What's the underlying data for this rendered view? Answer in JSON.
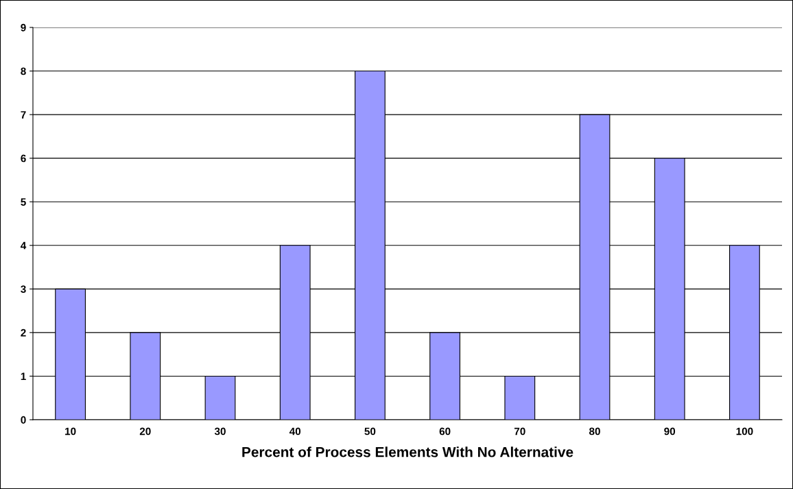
{
  "chart_data": {
    "type": "bar",
    "xlabel": "Percent of Process Elements With No Alternative",
    "categories": [
      "10",
      "20",
      "30",
      "40",
      "50",
      "60",
      "70",
      "80",
      "90",
      "100"
    ],
    "values": [
      3,
      2,
      1,
      4,
      8,
      2,
      1,
      7,
      6,
      4
    ],
    "color": "#9999ff",
    "ylim": [
      0,
      9
    ],
    "yticks": [
      0,
      1,
      2,
      3,
      4,
      5,
      6,
      7,
      8,
      9
    ],
    "grid": "y"
  }
}
